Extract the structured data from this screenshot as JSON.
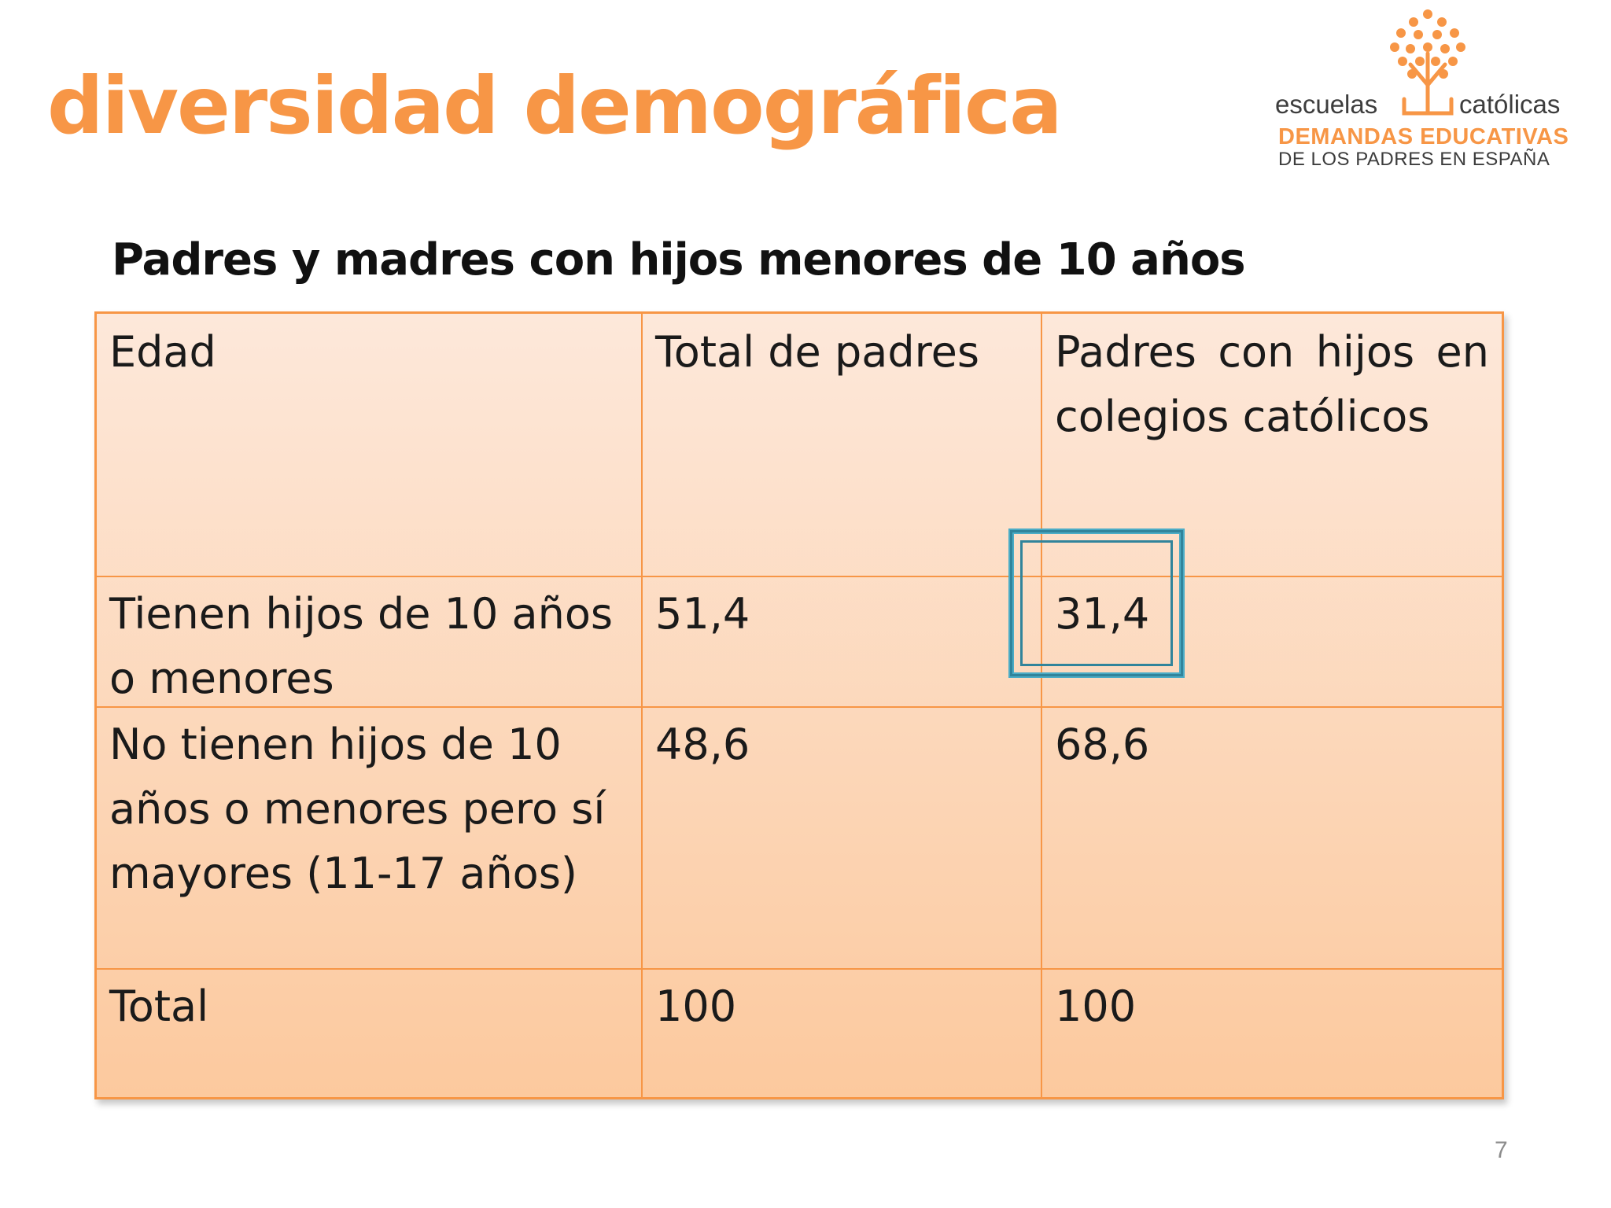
{
  "title": "diversidad demográfica",
  "logo": {
    "word_left": "escuelas",
    "word_right": "católicas",
    "line1": "DEMANDAS EDUCATIVAS",
    "line2": "DE LOS PADRES EN ESPAÑA",
    "brand_color": "#f79646"
  },
  "subtitle": "Padres y madres con hijos menores de 10 años",
  "table": {
    "headers": [
      "Edad",
      "Total de padres",
      "Padres con hijos en colegios católicos"
    ],
    "rows": [
      [
        "Tienen hijos de 10 años o menores",
        "51,4",
        "31,4"
      ],
      [
        "No tienen hijos de 10 años o menores pero sí mayores (11-17 años)",
        "48,6",
        "68,6"
      ],
      [
        "Total",
        "100",
        "100"
      ]
    ],
    "highlighted_value": "31,4"
  },
  "colors": {
    "accent": "#f79646",
    "highlight": "#4bacc6"
  },
  "page_number": "7"
}
